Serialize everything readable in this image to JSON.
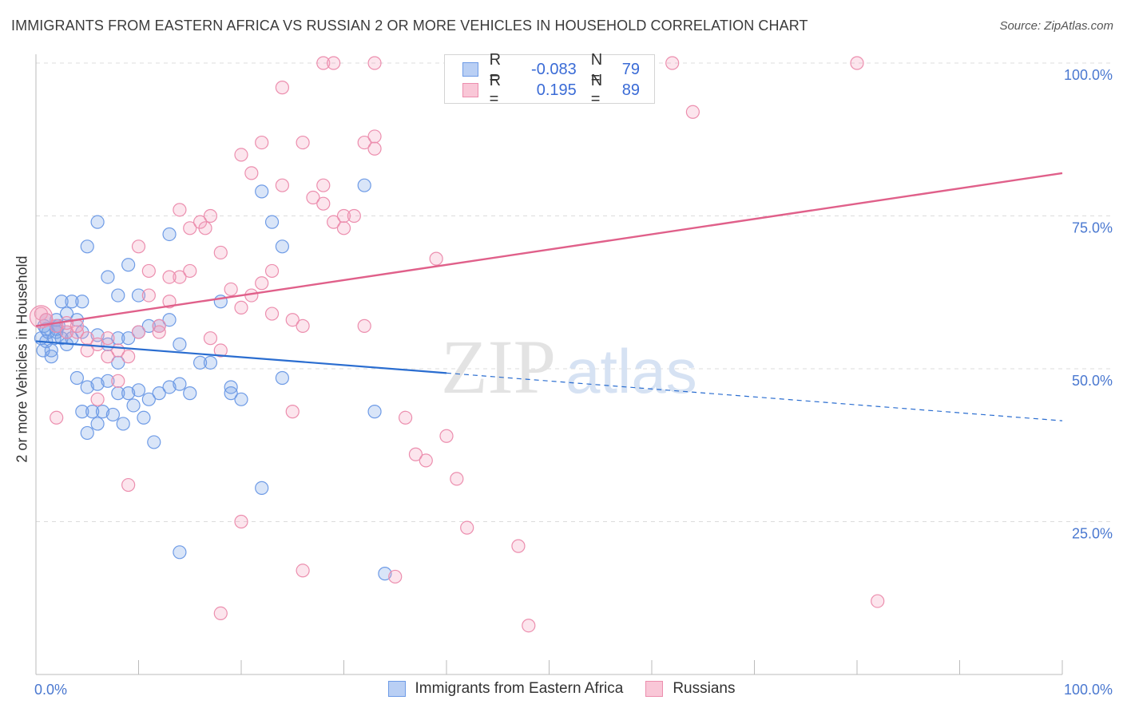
{
  "header": {
    "title": "IMMIGRANTS FROM EASTERN AFRICA VS RUSSIAN 2 OR MORE VEHICLES IN HOUSEHOLD CORRELATION CHART",
    "source": "Source: ZipAtlas.com"
  },
  "watermark": {
    "zip": "ZIP",
    "atlas": "atlas"
  },
  "legend": {
    "rows": [
      {
        "r_label": "R =",
        "r_value": "-0.083",
        "n_label": "N =",
        "n_value": "79"
      },
      {
        "r_label": "R =",
        "r_value": "0.195",
        "n_label": "N =",
        "n_value": "89"
      }
    ]
  },
  "chart_data": {
    "type": "scatter",
    "title": "IMMIGRANTS FROM EASTERN AFRICA VS RUSSIAN 2 OR MORE VEHICLES IN HOUSEHOLD CORRELATION CHART",
    "xlabel": "",
    "ylabel": "2 or more Vehicles in Household",
    "xlim": [
      0,
      100
    ],
    "ylim": [
      0,
      100
    ],
    "x_tick_labels": [
      "0.0%",
      "100.0%"
    ],
    "y_ticks": [
      25,
      50,
      75,
      100
    ],
    "y_tick_labels": [
      "25.0%",
      "50.0%",
      "75.0%",
      "100.0%"
    ],
    "grid": true,
    "legend_position": "bottom",
    "colors": {
      "blue": "#5b8fe8",
      "blue_line": "#2a6dd0",
      "pink": "#f090b0",
      "pink_line": "#e0608a"
    },
    "series": [
      {
        "name": "Immigrants from Eastern Africa",
        "color": "blue",
        "r": -0.083,
        "n": 79,
        "trend": {
          "x0": 0,
          "y0": 54.5,
          "x1": 100,
          "y1": 41.5,
          "solid_until": 40
        },
        "points": [
          [
            0.5,
            55
          ],
          [
            0.8,
            57
          ],
          [
            1,
            54.5
          ],
          [
            1.2,
            56
          ],
          [
            1.5,
            53
          ],
          [
            1.8,
            55
          ],
          [
            2,
            56
          ],
          [
            2.2,
            57
          ],
          [
            2.5,
            55
          ],
          [
            3,
            54
          ],
          [
            0.7,
            53
          ],
          [
            1,
            58
          ],
          [
            1.5,
            52
          ],
          [
            2,
            57
          ],
          [
            3,
            56
          ],
          [
            3.5,
            55
          ],
          [
            4,
            58
          ],
          [
            4.5,
            61
          ],
          [
            2.5,
            61
          ],
          [
            3.5,
            61
          ],
          [
            4,
            48.5
          ],
          [
            5,
            47
          ],
          [
            6,
            47.5
          ],
          [
            7,
            48
          ],
          [
            8,
            46
          ],
          [
            9,
            46
          ],
          [
            10,
            46.5
          ],
          [
            11,
            45
          ],
          [
            12,
            46
          ],
          [
            13,
            47
          ],
          [
            4.5,
            43
          ],
          [
            5.5,
            43
          ],
          [
            6.5,
            43
          ],
          [
            7.5,
            42.5
          ],
          [
            8.5,
            41
          ],
          [
            9.5,
            44
          ],
          [
            10.5,
            42
          ],
          [
            11.5,
            38
          ],
          [
            5,
            39.5
          ],
          [
            6,
            41
          ],
          [
            5,
            70
          ],
          [
            6,
            74
          ],
          [
            7,
            65
          ],
          [
            8,
            62
          ],
          [
            9,
            67
          ],
          [
            10,
            62
          ],
          [
            11,
            57
          ],
          [
            12,
            57
          ],
          [
            13,
            58
          ],
          [
            14,
            54
          ],
          [
            13,
            72
          ],
          [
            16,
            51
          ],
          [
            17,
            51
          ],
          [
            18,
            61
          ],
          [
            19,
            46
          ],
          [
            20,
            45
          ],
          [
            22,
            79
          ],
          [
            23,
            74
          ],
          [
            24,
            70
          ],
          [
            24,
            48.5
          ],
          [
            14,
            47.5
          ],
          [
            15,
            46
          ],
          [
            19,
            47
          ],
          [
            22,
            30.5
          ],
          [
            14,
            20
          ],
          [
            32,
            80
          ],
          [
            33,
            43
          ],
          [
            34,
            16.5
          ],
          [
            8,
            55
          ],
          [
            9,
            55
          ],
          [
            10,
            56
          ],
          [
            7,
            54
          ],
          [
            6,
            55.5
          ],
          [
            8,
            51
          ],
          [
            1,
            56.5
          ],
          [
            2,
            58
          ],
          [
            3,
            59
          ],
          [
            4.5,
            56
          ],
          [
            2,
            56.5
          ]
        ]
      },
      {
        "name": "Russians",
        "color": "pink",
        "r": 0.195,
        "n": 89,
        "trend": {
          "x0": 0,
          "y0": 57,
          "x1": 100,
          "y1": 82
        },
        "points": [
          [
            0.5,
            59
          ],
          [
            1,
            58
          ],
          [
            2,
            57
          ],
          [
            3,
            56
          ],
          [
            4,
            56
          ],
          [
            5,
            55
          ],
          [
            6,
            54
          ],
          [
            7,
            55
          ],
          [
            8,
            53
          ],
          [
            9,
            52
          ],
          [
            2,
            42
          ],
          [
            6,
            45
          ],
          [
            8,
            48
          ],
          [
            9,
            31
          ],
          [
            10,
            56
          ],
          [
            11,
            62
          ],
          [
            12,
            57
          ],
          [
            13,
            61
          ],
          [
            14,
            65
          ],
          [
            15,
            66
          ],
          [
            10,
            70
          ],
          [
            11,
            66
          ],
          [
            13,
            65
          ],
          [
            14,
            76
          ],
          [
            15,
            73
          ],
          [
            16,
            74
          ],
          [
            16.5,
            73
          ],
          [
            17,
            75
          ],
          [
            18,
            69
          ],
          [
            19,
            63
          ],
          [
            20,
            85
          ],
          [
            21,
            82
          ],
          [
            22,
            87
          ],
          [
            23,
            66
          ],
          [
            24,
            80
          ],
          [
            24,
            96
          ],
          [
            25,
            58
          ],
          [
            26,
            87
          ],
          [
            26,
            57
          ],
          [
            27,
            78
          ],
          [
            20,
            60
          ],
          [
            21,
            62
          ],
          [
            22,
            64
          ],
          [
            23,
            59
          ],
          [
            25,
            43
          ],
          [
            26,
            17
          ],
          [
            28,
            80
          ],
          [
            28,
            77
          ],
          [
            29,
            74
          ],
          [
            30,
            75
          ],
          [
            30,
            73
          ],
          [
            31,
            75
          ],
          [
            32,
            87
          ],
          [
            32,
            57
          ],
          [
            33,
            88
          ],
          [
            33,
            86
          ],
          [
            33,
            100
          ],
          [
            35,
            16
          ],
          [
            36,
            42
          ],
          [
            37,
            36
          ],
          [
            38,
            35
          ],
          [
            39,
            68
          ],
          [
            40,
            39
          ],
          [
            41,
            32
          ],
          [
            42,
            24
          ],
          [
            43,
            100
          ],
          [
            44,
            100
          ],
          [
            45,
            100
          ],
          [
            46,
            100
          ],
          [
            47,
            21
          ],
          [
            48,
            8
          ],
          [
            50,
            100
          ],
          [
            52,
            100
          ],
          [
            54,
            100
          ],
          [
            62,
            100
          ],
          [
            64,
            92
          ],
          [
            80,
            100
          ],
          [
            82,
            12
          ],
          [
            18,
            10
          ],
          [
            20,
            25
          ],
          [
            17,
            55
          ],
          [
            18,
            53
          ],
          [
            12,
            56
          ],
          [
            5,
            53
          ],
          [
            4,
            57
          ],
          [
            3,
            57.5
          ],
          [
            7,
            52
          ],
          [
            28,
            100
          ],
          [
            29,
            100
          ]
        ]
      }
    ]
  }
}
